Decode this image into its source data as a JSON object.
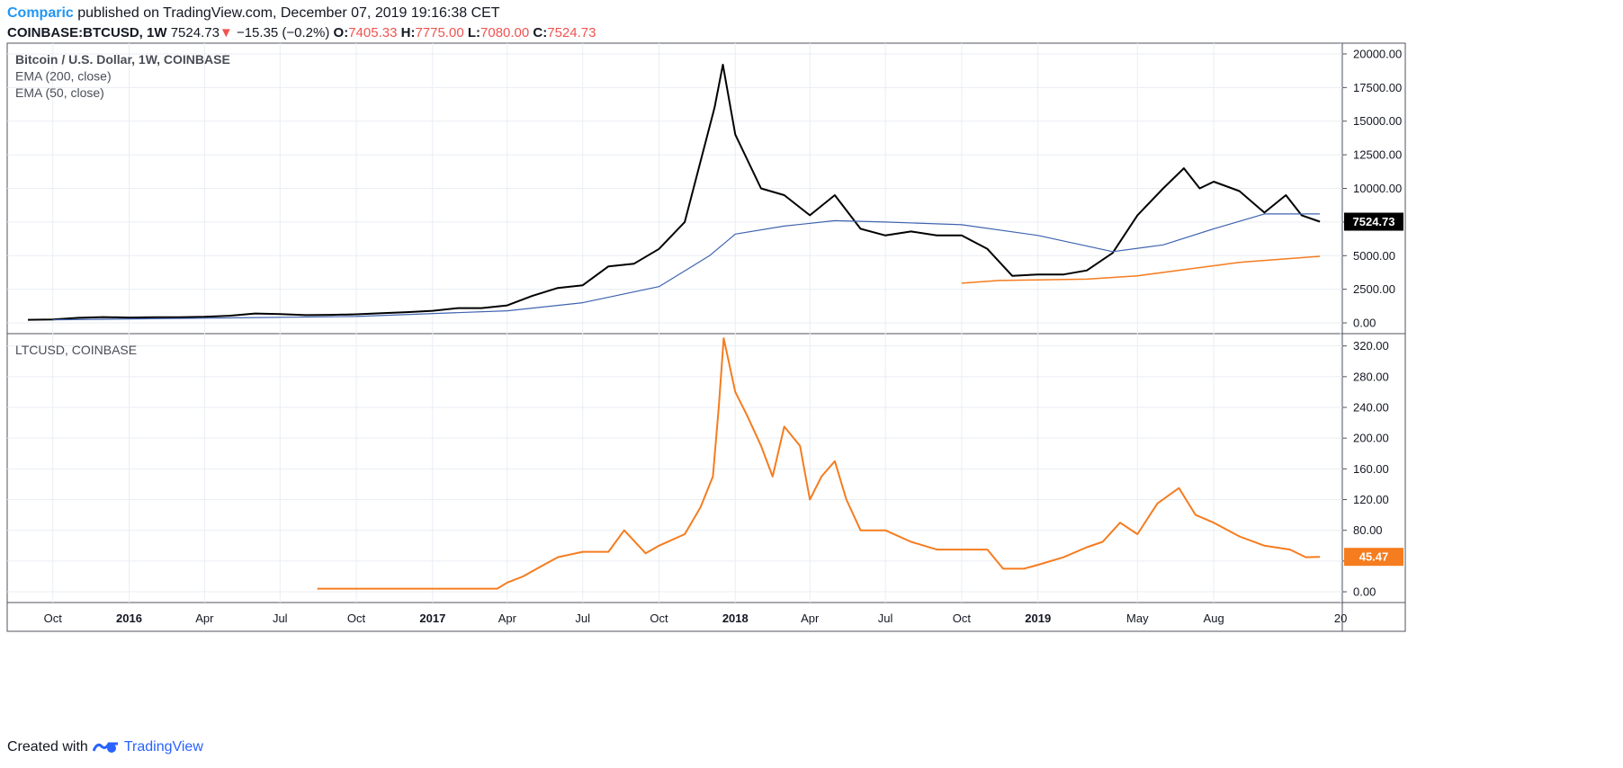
{
  "header": {
    "author": "Comparic",
    "published_text": "published on TradingView.com, December 07, 2019 19:16:38 CET",
    "symbol": "COINBASE:BTCUSD, 1W",
    "last": "7524.73",
    "change_arrow": "▼",
    "change": "−15.35 (−0.2%)",
    "o_label": "O:",
    "o_value": "7405.33",
    "h_label": "H:",
    "h_value": "7775.00",
    "l_label": "L:",
    "l_value": "7080.00",
    "c_label": "C:",
    "c_value": "7524.73"
  },
  "footer": {
    "created_with": "Created with",
    "brand": "TradingView"
  },
  "colors": {
    "btc": "#000000",
    "ema200": "#3f63b0",
    "ema50": "#f57c1f",
    "ltc": "#f57c1f",
    "grid": "#e9eef3",
    "down": "#ef5350",
    "brand": "#2196f3"
  },
  "chart_data": [
    {
      "type": "line",
      "pane": "top",
      "legend": [
        "Bitcoin / U.S. Dollar, 1W, COINBASE",
        "EMA (200, close)",
        "EMA (50, close)"
      ],
      "ylim": [
        -800,
        20800
      ],
      "yticks": [
        0,
        2500,
        5000,
        7500,
        10000,
        12500,
        15000,
        17500,
        20000
      ],
      "ytick_labels": [
        "0.00",
        "2500.00",
        "5000.00",
        "7500.00",
        "10000.00",
        "12500.00",
        "15000.00",
        "17500.00",
        "20000.00"
      ],
      "last_value_label": "7524.73",
      "last_value": 7524.73,
      "series": [
        {
          "name": "Bitcoin / U.S. Dollar, 1W, COINBASE",
          "x": [
            "2015-09-01",
            "2015-10-01",
            "2015-11-01",
            "2015-12-01",
            "2016-01-01",
            "2016-02-01",
            "2016-03-01",
            "2016-04-01",
            "2016-05-01",
            "2016-06-01",
            "2016-07-01",
            "2016-08-01",
            "2016-09-01",
            "2016-10-01",
            "2016-11-01",
            "2016-12-01",
            "2017-01-01",
            "2017-02-01",
            "2017-03-01",
            "2017-04-01",
            "2017-05-01",
            "2017-06-01",
            "2017-07-01",
            "2017-08-01",
            "2017-09-01",
            "2017-10-01",
            "2017-11-01",
            "2017-12-07",
            "2017-12-17",
            "2018-01-01",
            "2018-02-01",
            "2018-03-01",
            "2018-04-01",
            "2018-05-01",
            "2018-06-01",
            "2018-07-01",
            "2018-08-01",
            "2018-09-01",
            "2018-10-01",
            "2018-11-01",
            "2018-12-01",
            "2019-01-01",
            "2019-02-01",
            "2019-03-01",
            "2019-04-01",
            "2019-05-01",
            "2019-06-01",
            "2019-06-26",
            "2019-07-15",
            "2019-08-01",
            "2019-09-01",
            "2019-10-01",
            "2019-10-27",
            "2019-11-15",
            "2019-12-07"
          ],
          "values": [
            230,
            250,
            380,
            430,
            400,
            420,
            420,
            450,
            530,
            700,
            650,
            580,
            600,
            640,
            720,
            800,
            900,
            1100,
            1100,
            1300,
            2000,
            2600,
            2800,
            4200,
            4400,
            5500,
            7500,
            16000,
            19200,
            14000,
            10000,
            9500,
            8000,
            9500,
            7000,
            6500,
            6800,
            6500,
            6500,
            5500,
            3500,
            3600,
            3600,
            3900,
            5200,
            8000,
            10000,
            11500,
            10000,
            10500,
            9800,
            8200,
            9500,
            8000,
            7524.73
          ]
        },
        {
          "name": "EMA (200, close)",
          "x": [
            "2015-10-01",
            "2016-04-01",
            "2016-10-01",
            "2017-04-01",
            "2017-07-01",
            "2017-10-01",
            "2017-12-01",
            "2018-01-01",
            "2018-03-01",
            "2018-05-01",
            "2018-07-01",
            "2018-10-01",
            "2019-01-01",
            "2019-04-01",
            "2019-06-01",
            "2019-08-01",
            "2019-10-01",
            "2019-12-07"
          ],
          "values": [
            230,
            350,
            480,
            900,
            1500,
            2700,
            5000,
            6600,
            7200,
            7600,
            7500,
            7300,
            6500,
            5300,
            5800,
            7000,
            8100,
            8100
          ]
        },
        {
          "name": "EMA (50, close)",
          "x": [
            "2018-10-01",
            "2018-11-15",
            "2019-01-01",
            "2019-03-01",
            "2019-05-01",
            "2019-07-01",
            "2019-09-01",
            "2019-12-07"
          ],
          "values": [
            2950,
            3150,
            3200,
            3250,
            3500,
            4000,
            4500,
            4950
          ]
        }
      ]
    },
    {
      "type": "line",
      "pane": "bottom",
      "legend": [
        "LTCUSD, COINBASE"
      ],
      "ylim": [
        -14,
        336
      ],
      "yticks": [
        0,
        40,
        80,
        120,
        160,
        200,
        240,
        280,
        320
      ],
      "ytick_labels": [
        "0.00",
        "40.00",
        "80.00",
        "120.00",
        "160.00",
        "200.00",
        "240.00",
        "280.00",
        "320.00"
      ],
      "last_value_label": "45.47",
      "last_value": 45.47,
      "series": [
        {
          "name": "LTCUSD, COINBASE",
          "x": [
            "2016-08-15",
            "2016-10-01",
            "2017-01-01",
            "2017-03-20",
            "2017-04-01",
            "2017-04-20",
            "2017-05-15",
            "2017-06-01",
            "2017-07-01",
            "2017-08-01",
            "2017-08-20",
            "2017-09-15",
            "2017-10-01",
            "2017-11-01",
            "2017-11-20",
            "2017-12-05",
            "2017-12-12",
            "2017-12-18",
            "2018-01-01",
            "2018-01-15",
            "2018-02-01",
            "2018-02-15",
            "2018-03-01",
            "2018-03-20",
            "2018-04-01",
            "2018-04-15",
            "2018-05-01",
            "2018-05-15",
            "2018-06-01",
            "2018-07-01",
            "2018-08-01",
            "2018-09-01",
            "2018-10-01",
            "2018-11-01",
            "2018-11-20",
            "2018-12-15",
            "2019-01-01",
            "2019-02-01",
            "2019-03-01",
            "2019-03-20",
            "2019-04-10",
            "2019-05-01",
            "2019-05-25",
            "2019-06-20",
            "2019-07-10",
            "2019-08-01",
            "2019-09-01",
            "2019-10-01",
            "2019-11-01",
            "2019-11-20",
            "2019-12-07"
          ],
          "values": [
            4,
            4,
            4,
            4,
            12,
            20,
            35,
            45,
            52,
            52,
            80,
            50,
            60,
            75,
            110,
            150,
            240,
            330,
            260,
            230,
            190,
            150,
            215,
            190,
            120,
            150,
            170,
            120,
            80,
            80,
            65,
            55,
            55,
            55,
            30,
            30,
            35,
            45,
            58,
            65,
            90,
            75,
            115,
            135,
            100,
            90,
            72,
            60,
            55,
            45,
            45.47
          ]
        }
      ]
    }
  ],
  "x_axis": {
    "tick_dates": [
      "2015-10-01",
      "2016-01-01",
      "2016-04-01",
      "2016-07-01",
      "2016-10-01",
      "2017-01-01",
      "2017-04-01",
      "2017-07-01",
      "2017-10-01",
      "2018-01-01",
      "2018-04-01",
      "2018-07-01",
      "2018-10-01",
      "2019-01-01",
      "2019-05-01",
      "2019-08-01",
      "2020-01-01"
    ],
    "tick_labels": [
      "Oct",
      "2016",
      "Apr",
      "Jul",
      "Oct",
      "2017",
      "Apr",
      "Jul",
      "Oct",
      "2018",
      "Apr",
      "Jul",
      "Oct",
      "2019",
      "May",
      "Aug",
      "20"
    ],
    "year_ticks": [
      "2016",
      "2017",
      "2018",
      "2019"
    ]
  }
}
